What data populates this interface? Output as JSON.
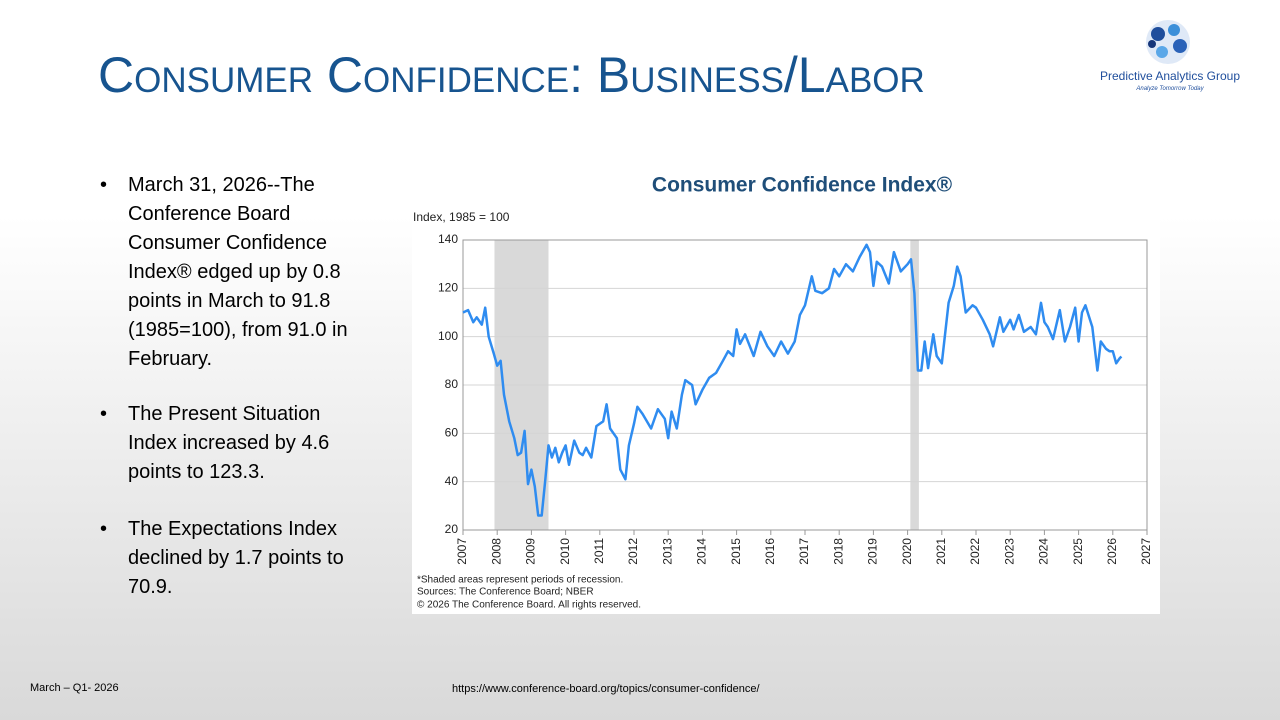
{
  "slide": {
    "title": "Consumer Confidence: Business/Labor",
    "logo_name": "Predictive Analytics Group",
    "logo_tagline": "Analyze Tomorrow Today",
    "bullets": [
      "March 31, 2026--The Conference Board Consumer Confidence Index® edged up by 0.8 points in March to 91.8 (1985=100), from 91.0 in February.",
      "The Present Situation Index increased by 4.6 points to 123.3.",
      "The Expectations Index declined by 1.7 points to 70.9."
    ],
    "footer_left": "March – Q1- 2026",
    "footer_url": "https://www.conference-board.org/topics/consumer-confidence/"
  },
  "chart_data": {
    "type": "line",
    "title": "Consumer Confidence Index®",
    "y_label": "Index, 1985 = 100",
    "notes": [
      "*Shaded areas represent periods of recession.",
      "Sources: The Conference Board;  NBER",
      "© 2026 The Conference Board. All rights reserved."
    ],
    "xlim": [
      2007,
      2027
    ],
    "xticks": [
      2007,
      2008,
      2009,
      2010,
      2011,
      2012,
      2013,
      2014,
      2015,
      2016,
      2017,
      2018,
      2019,
      2020,
      2021,
      2022,
      2023,
      2024,
      2025,
      2026,
      2027
    ],
    "ylim": [
      20,
      140
    ],
    "yticks": [
      20,
      40,
      60,
      80,
      100,
      120,
      140
    ],
    "grid": true,
    "color": "#2f8cf0",
    "recession_color": "#d9d9d9",
    "recessions": [
      [
        2007.92,
        2009.5
      ],
      [
        2020.08,
        2020.33
      ]
    ],
    "x": [
      2007.0,
      2007.15,
      2007.3,
      2007.4,
      2007.55,
      2007.65,
      2007.75,
      2007.9,
      2008.0,
      2008.1,
      2008.2,
      2008.35,
      2008.5,
      2008.6,
      2008.7,
      2008.8,
      2008.9,
      2009.0,
      2009.1,
      2009.2,
      2009.3,
      2009.4,
      2009.5,
      2009.6,
      2009.7,
      2009.8,
      2009.9,
      2010.0,
      2010.1,
      2010.25,
      2010.4,
      2010.5,
      2010.6,
      2010.75,
      2010.9,
      2011.1,
      2011.2,
      2011.3,
      2011.5,
      2011.6,
      2011.75,
      2011.85,
      2012.0,
      2012.1,
      2012.25,
      2012.5,
      2012.7,
      2012.9,
      2013.0,
      2013.1,
      2013.25,
      2013.4,
      2013.5,
      2013.7,
      2013.8,
      2014.0,
      2014.2,
      2014.4,
      2014.6,
      2014.75,
      2014.9,
      2015.0,
      2015.1,
      2015.25,
      2015.5,
      2015.7,
      2015.9,
      2016.1,
      2016.3,
      2016.5,
      2016.7,
      2016.85,
      2017.0,
      2017.2,
      2017.3,
      2017.5,
      2017.7,
      2017.85,
      2018.0,
      2018.2,
      2018.4,
      2018.6,
      2018.8,
      2018.9,
      2019.0,
      2019.1,
      2019.25,
      2019.45,
      2019.6,
      2019.8,
      2020.0,
      2020.1,
      2020.2,
      2020.3,
      2020.4,
      2020.5,
      2020.6,
      2020.75,
      2020.85,
      2021.0,
      2021.2,
      2021.35,
      2021.45,
      2021.55,
      2021.7,
      2021.9,
      2022.0,
      2022.2,
      2022.4,
      2022.5,
      2022.7,
      2022.8,
      2023.0,
      2023.1,
      2023.25,
      2023.4,
      2023.6,
      2023.75,
      2023.9,
      2024.0,
      2024.1,
      2024.25,
      2024.45,
      2024.6,
      2024.75,
      2024.9,
      2025.0,
      2025.1,
      2025.2,
      2025.4,
      2025.55,
      2025.65,
      2025.8,
      2025.9,
      2026.0,
      2026.1,
      2026.2,
      2026.25
    ],
    "values": [
      110,
      111,
      106,
      108,
      105,
      112,
      100,
      93,
      88,
      90,
      76,
      65,
      58,
      51,
      52,
      61,
      39,
      45,
      38,
      26,
      26,
      40,
      55,
      50,
      54,
      48,
      52,
      55,
      47,
      57,
      52,
      51,
      54,
      50,
      63,
      65,
      72,
      62,
      58,
      45,
      41,
      55,
      64,
      71,
      68,
      62,
      70,
      66,
      58,
      69,
      62,
      76,
      82,
      80,
      72,
      78,
      83,
      85,
      90,
      94,
      92,
      103,
      97,
      101,
      92,
      102,
      96,
      92,
      98,
      93,
      98,
      109,
      113,
      125,
      119,
      118,
      120,
      128,
      125,
      130,
      127,
      133,
      138,
      135,
      121,
      131,
      129,
      122,
      135,
      127,
      130,
      132,
      118,
      86,
      86,
      98,
      87,
      101,
      92,
      89,
      114,
      121,
      129,
      125,
      110,
      113,
      112,
      107,
      101,
      96,
      108,
      102,
      107,
      103,
      109,
      102,
      104,
      101,
      114,
      106,
      104,
      99,
      111,
      98,
      104,
      112,
      98,
      110,
      113,
      104,
      86,
      98,
      95,
      94,
      94,
      89,
      91,
      91.8
    ]
  }
}
